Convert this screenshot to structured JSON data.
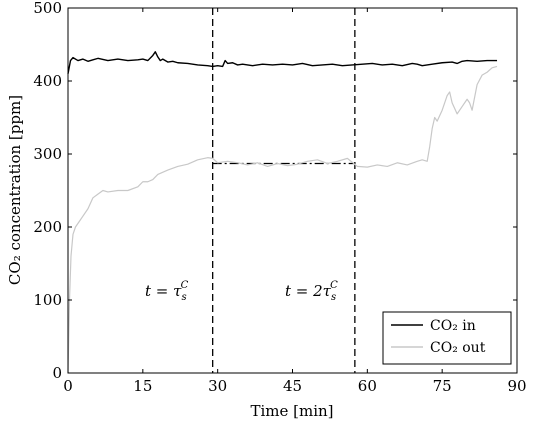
{
  "chart_data": {
    "type": "line",
    "xlabel": "Time [min]",
    "ylabel": "CO₂ concentration [ppm]",
    "xlim": [
      0,
      90
    ],
    "ylim": [
      0,
      500
    ],
    "xticks": [
      0,
      15,
      30,
      45,
      60,
      75,
      90
    ],
    "yticks": [
      0,
      100,
      200,
      300,
      400,
      500
    ],
    "grid": false,
    "legend_position": "bottom-right",
    "series": [
      {
        "name": "CO₂ in",
        "color": "#000000",
        "x": [
          0,
          0.5,
          1,
          2,
          3,
          4,
          5,
          6,
          8,
          10,
          12,
          14,
          15,
          16,
          17,
          17.5,
          18,
          18.5,
          19,
          20,
          21,
          22,
          24,
          26,
          28,
          29,
          30,
          31,
          31.5,
          32,
          33,
          34,
          35,
          37,
          39,
          41,
          43,
          45,
          47,
          49,
          51,
          53,
          55,
          57,
          59,
          61,
          63,
          65,
          67,
          69,
          70,
          71,
          73,
          75,
          77,
          78,
          79,
          80,
          82,
          84,
          86
        ],
        "y": [
          410,
          428,
          432,
          428,
          430,
          427,
          429,
          431,
          428,
          430,
          428,
          429,
          430,
          428,
          435,
          440,
          433,
          428,
          430,
          426,
          427,
          425,
          424,
          422,
          421,
          420,
          421,
          420,
          428,
          424,
          425,
          422,
          423,
          421,
          423,
          422,
          423,
          422,
          424,
          421,
          422,
          423,
          421,
          422,
          423,
          424,
          422,
          423,
          421,
          424,
          423,
          421,
          423,
          425,
          426,
          424,
          427,
          428,
          427,
          428,
          428
        ]
      },
      {
        "name": "CO₂ out",
        "color": "#c8c8c8",
        "x": [
          0,
          0.3,
          0.6,
          1,
          1.5,
          2,
          3,
          4,
          5,
          6,
          7,
          8,
          10,
          12,
          14,
          15,
          16,
          17,
          18,
          20,
          22,
          24,
          26,
          28,
          29,
          30,
          32,
          34,
          36,
          38,
          40,
          42,
          44,
          46,
          48,
          50,
          52,
          54,
          56,
          58,
          60,
          62,
          64,
          66,
          68,
          70,
          71,
          72,
          72.5,
          73,
          73.5,
          74,
          75,
          76,
          76.5,
          77,
          78,
          79,
          80,
          80.5,
          81,
          82,
          83,
          84,
          85,
          86
        ],
        "y": [
          0,
          100,
          160,
          190,
          200,
          205,
          215,
          225,
          240,
          245,
          250,
          248,
          250,
          250,
          255,
          262,
          262,
          265,
          272,
          278,
          283,
          286,
          292,
          295,
          294,
          288,
          290,
          288,
          285,
          288,
          283,
          287,
          284,
          286,
          290,
          292,
          287,
          290,
          294,
          283,
          282,
          285,
          283,
          288,
          285,
          290,
          292,
          290,
          310,
          335,
          350,
          345,
          360,
          380,
          385,
          370,
          355,
          365,
          375,
          370,
          360,
          395,
          408,
          412,
          418,
          420
        ]
      }
    ],
    "reference_lines": [
      {
        "type": "vertical",
        "x": 29,
        "style": "dashed"
      },
      {
        "type": "vertical",
        "x": 57.5,
        "style": "dashed"
      },
      {
        "type": "horizontal",
        "y": 287,
        "x_range": [
          29,
          57.5
        ],
        "style": "dash-dot"
      }
    ],
    "annotations": [
      {
        "id": "t1",
        "text_before": "t = τ",
        "sub": "s",
        "sup": "C",
        "x": 29
      },
      {
        "id": "t2",
        "text_before": "t = 2τ",
        "sub": "s",
        "sup": "C",
        "x": 57.5
      }
    ]
  }
}
